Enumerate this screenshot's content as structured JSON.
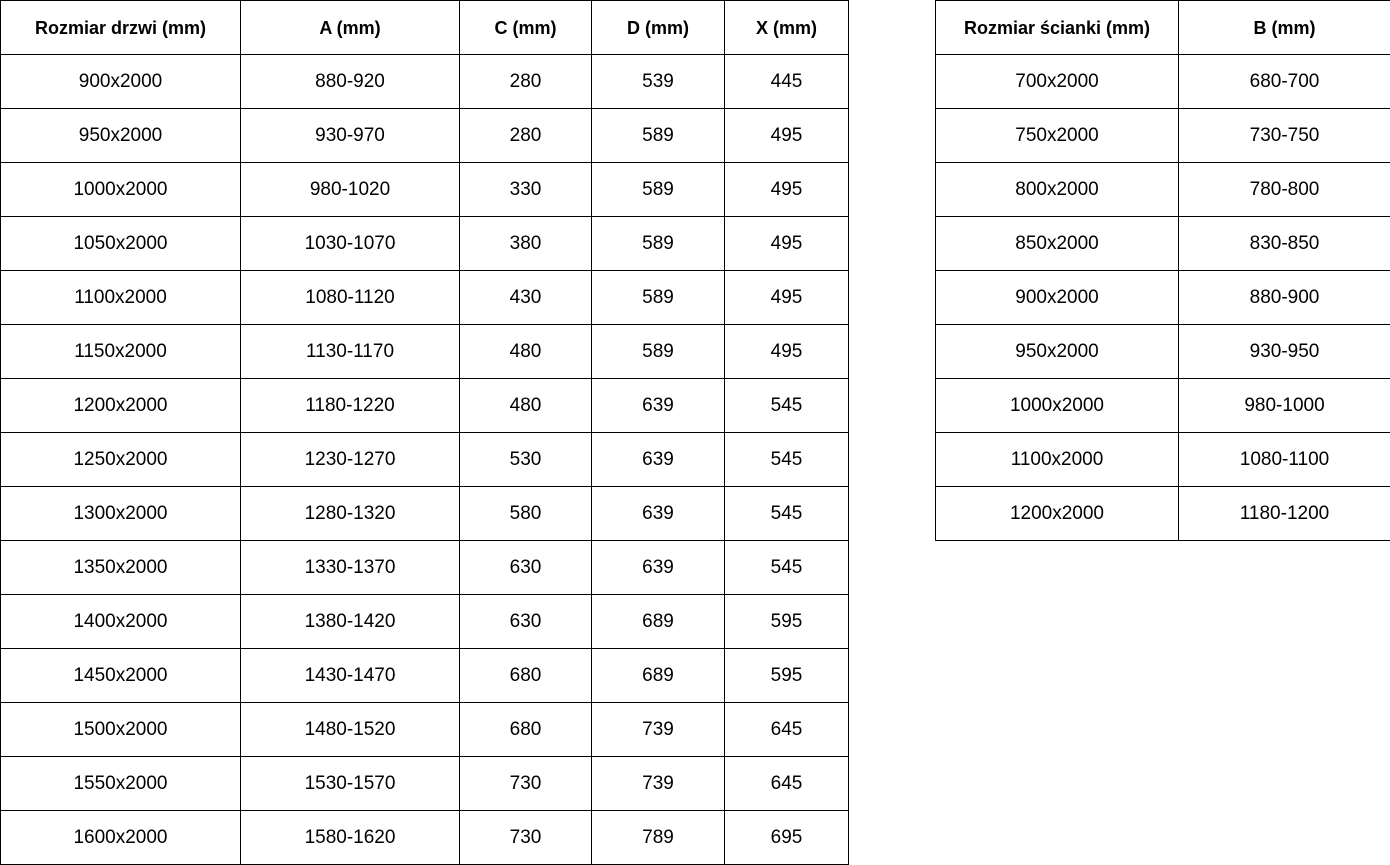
{
  "left_table": {
    "headers": [
      "Rozmiar drzwi (mm)",
      "A (mm)",
      "C (mm)",
      "D (mm)",
      "X (mm)"
    ],
    "rows": [
      [
        "900x2000",
        "880-920",
        "280",
        "539",
        "445"
      ],
      [
        "950x2000",
        "930-970",
        "280",
        "589",
        "495"
      ],
      [
        "1000x2000",
        "980-1020",
        "330",
        "589",
        "495"
      ],
      [
        "1050x2000",
        "1030-1070",
        "380",
        "589",
        "495"
      ],
      [
        "1100x2000",
        "1080-1120",
        "430",
        "589",
        "495"
      ],
      [
        "1150x2000",
        "1130-1170",
        "480",
        "589",
        "495"
      ],
      [
        "1200x2000",
        "1180-1220",
        "480",
        "639",
        "545"
      ],
      [
        "1250x2000",
        "1230-1270",
        "530",
        "639",
        "545"
      ],
      [
        "1300x2000",
        "1280-1320",
        "580",
        "639",
        "545"
      ],
      [
        "1350x2000",
        "1330-1370",
        "630",
        "639",
        "545"
      ],
      [
        "1400x2000",
        "1380-1420",
        "630",
        "689",
        "595"
      ],
      [
        "1450x2000",
        "1430-1470",
        "680",
        "689",
        "595"
      ],
      [
        "1500x2000",
        "1480-1520",
        "680",
        "739",
        "645"
      ],
      [
        "1550x2000",
        "1530-1570",
        "730",
        "739",
        "645"
      ],
      [
        "1600x2000",
        "1580-1620",
        "730",
        "789",
        "695"
      ]
    ]
  },
  "right_table": {
    "headers": [
      "Rozmiar ścianki (mm)",
      "B (mm)"
    ],
    "rows": [
      [
        "700x2000",
        "680-700"
      ],
      [
        "750x2000",
        "730-750"
      ],
      [
        "800x2000",
        "780-800"
      ],
      [
        "850x2000",
        "830-850"
      ],
      [
        "900x2000",
        "880-900"
      ],
      [
        "950x2000",
        "930-950"
      ],
      [
        "1000x2000",
        "980-1000"
      ],
      [
        "1100x2000",
        "1080-1100"
      ],
      [
        "1200x2000",
        "1180-1200"
      ]
    ]
  },
  "colors": {
    "border": "#000000",
    "text": "#000000",
    "background": "#ffffff"
  }
}
